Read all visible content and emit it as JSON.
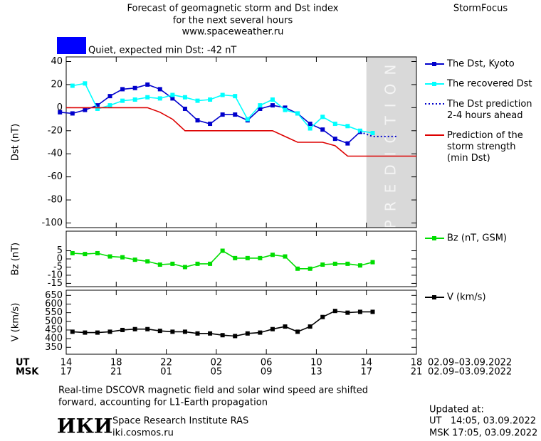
{
  "header": {
    "title_lines": [
      "Forecast of geomagnetic storm and Dst index",
      "for the next several hours",
      "www.spaceweather.ru"
    ],
    "brand": "StormFocus",
    "status": "Quiet, expected min Dst: -42 nT"
  },
  "chart_data": [
    {
      "type": "line",
      "y_label": "Dst (nT)",
      "xlim": [
        0,
        28
      ],
      "xticks": [
        0,
        4,
        8,
        12,
        16,
        20,
        24,
        28
      ],
      "ylim": [
        -104,
        44
      ],
      "yticks": [
        40,
        20,
        0,
        -20,
        -40,
        -60,
        -80,
        -100
      ],
      "prediction_band": {
        "label": "PREDICTION",
        "xlim": [
          24,
          28
        ]
      },
      "series": [
        {
          "name": "The Dst, Kyoto",
          "color": "#0000cc",
          "marker": "square",
          "x": [
            -0.5,
            0.5,
            1.5,
            2.5,
            3.5,
            4.5,
            5.5,
            6.5,
            7.5,
            8.5,
            9.5,
            10.5,
            11.5,
            12.5,
            13.5,
            14.5,
            15.5,
            16.5,
            17.5,
            18.5,
            19.5,
            20.5,
            21.5,
            22.5,
            23.5
          ],
          "values": [
            -4,
            -5,
            -2,
            2,
            10,
            16,
            17,
            20,
            16,
            8,
            -1,
            -11,
            -14,
            -6,
            -6,
            -11,
            -1,
            2,
            0,
            -5,
            -14,
            -19,
            -27,
            -31,
            -21
          ]
        },
        {
          "name": "The recovered Dst",
          "color": "#00ffff",
          "marker": "square",
          "x": [
            0.5,
            1.5,
            2.5,
            3.5,
            4.5,
            5.5,
            6.5,
            7.5,
            8.5,
            9.5,
            10.5,
            11.5,
            12.5,
            13.5,
            14.5,
            15.5,
            16.5,
            17.5,
            18.5,
            19.5,
            20.5,
            21.5,
            22.5,
            23.5,
            24.5
          ],
          "values": [
            19,
            21,
            -1,
            2,
            6,
            7,
            9,
            8,
            11,
            9,
            6,
            7,
            11,
            10,
            -10,
            2,
            7,
            -2,
            -5,
            -18,
            -8,
            -14,
            -16,
            -20,
            -22
          ]
        },
        {
          "name": "The Dst prediction\n2-4 hours ahead",
          "color": "#0000cc",
          "dash": "dotted",
          "x": [
            23.5,
            24.5,
            25.5,
            26.5
          ],
          "values": [
            -21,
            -25,
            -25,
            -25
          ]
        },
        {
          "name": "Prediction of the\nstorm strength\n(min Dst)",
          "color": "#dd0000",
          "x": [
            0,
            6.5,
            7.5,
            8.5,
            9.5,
            16.5,
            17.5,
            18.5,
            20.5,
            21.5,
            22.5,
            28
          ],
          "values": [
            0,
            0,
            -4,
            -10,
            -20,
            -20,
            -25,
            -30,
            -30,
            -33,
            -42,
            -42
          ]
        }
      ]
    },
    {
      "type": "line",
      "y_label": "Bz (nT)",
      "xlim": [
        0,
        28
      ],
      "xticks": [
        0,
        4,
        8,
        12,
        16,
        20,
        24,
        28
      ],
      "ylim": [
        -17,
        17
      ],
      "yticks": [
        5,
        0,
        -5,
        -10,
        -15
      ],
      "series": [
        {
          "name": "Bz (nT, GSM)",
          "color": "#00dd00",
          "marker": "square",
          "x": [
            0.5,
            1.5,
            2.5,
            3.5,
            4.5,
            5.5,
            6.5,
            7.5,
            8.5,
            9.5,
            10.5,
            11.5,
            12.5,
            13.5,
            14.5,
            15.5,
            16.5,
            17.5,
            18.5,
            19.5,
            20.5,
            21.5,
            22.5,
            23.5,
            24.5
          ],
          "values": [
            3.5,
            3,
            3.5,
            1.5,
            1,
            -0.5,
            -1.5,
            -3.5,
            -3,
            -5,
            -3,
            -3,
            5,
            0.5,
            0.5,
            0.5,
            2.5,
            1.5,
            -6,
            -6,
            -3.5,
            -3,
            -3,
            -4,
            -2
          ]
        }
      ]
    },
    {
      "type": "line",
      "y_label": "V (km/s)",
      "xlim": [
        0,
        28
      ],
      "xticks": [
        {
          "value": 0,
          "label": "14"
        },
        {
          "value": 4,
          "label": "18"
        },
        {
          "value": 8,
          "label": "22"
        },
        {
          "value": 12,
          "label": "02"
        },
        {
          "value": 16,
          "label": "06"
        },
        {
          "value": 20,
          "label": "10"
        },
        {
          "value": 24,
          "label": "14"
        },
        {
          "value": 28,
          "label": "18"
        }
      ],
      "xticks_msk": [
        "17",
        "21",
        "01",
        "05",
        "09",
        "13",
        "17",
        "21"
      ],
      "x_row_labels": [
        "UT",
        "MSK"
      ],
      "x_dates": [
        "02.09–03.09.2022",
        "02.09–03.09.2022"
      ],
      "ylim": [
        310,
        680
      ],
      "yticks": [
        350,
        400,
        450,
        500,
        550,
        600,
        650
      ],
      "series": [
        {
          "name": "V (km/s)",
          "color": "#000000",
          "marker": "square",
          "x": [
            0.5,
            1.5,
            2.5,
            3.5,
            4.5,
            5.5,
            6.5,
            7.5,
            8.5,
            9.5,
            10.5,
            11.5,
            12.5,
            13.5,
            14.5,
            15.5,
            16.5,
            17.5,
            18.5,
            19.5,
            20.5,
            21.5,
            22.5,
            23.5,
            24.5
          ],
          "values": [
            440,
            435,
            435,
            440,
            450,
            455,
            455,
            445,
            440,
            440,
            430,
            430,
            420,
            415,
            430,
            435,
            455,
            470,
            440,
            470,
            525,
            560,
            550,
            555,
            555
          ]
        }
      ]
    }
  ],
  "footer": {
    "note_lines": [
      "Real-time DSCOVR magnetic field and solar wind speed are shifted",
      "forward, accounting for L1-Earth propagation"
    ],
    "logo": "ИКИ",
    "institute": "Space Research Institute RAS",
    "site": "iki.cosmos.ru",
    "updated_label": "Updated at:",
    "updated_ut": "UT   14:05, 03.09.2022",
    "updated_msk": "MSK 17:05, 03.09.2022"
  }
}
